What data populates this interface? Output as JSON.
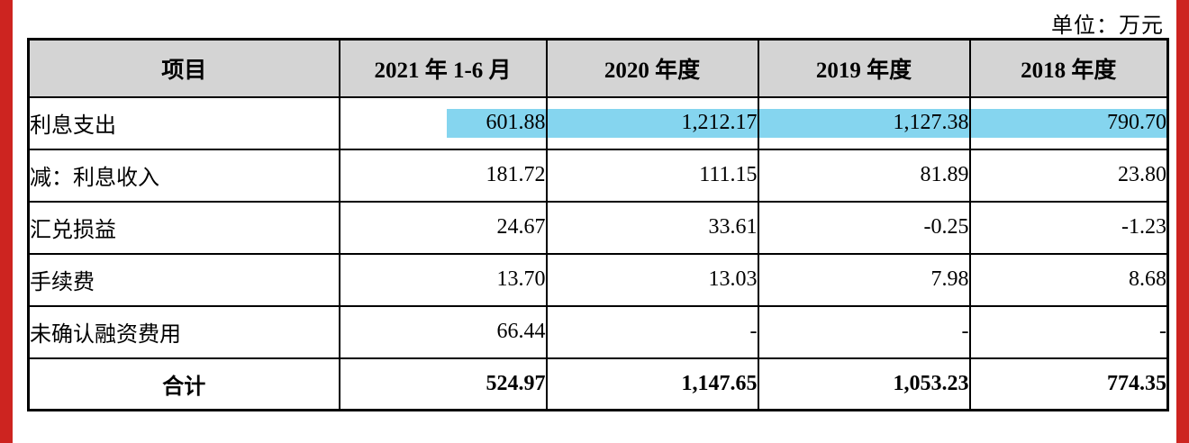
{
  "page": {
    "unit_label": "单位：万元"
  },
  "colors": {
    "edge_bar_red": "#cd2420",
    "header_background": "#d4d4d4",
    "highlight_blue": "#85d5ef",
    "border_black": "#000000"
  },
  "table": {
    "headers": [
      "项目",
      "2021 年 1-6 月",
      "2020 年度",
      "2019 年度",
      "2018 年度"
    ],
    "rows": [
      {
        "label": "利息支出",
        "values": [
          "601.88",
          "1,212.17",
          "1,127.38",
          "790.70"
        ],
        "highlighted": true
      },
      {
        "label": "减：利息收入",
        "values": [
          "181.72",
          "111.15",
          "81.89",
          "23.80"
        ],
        "highlighted": false
      },
      {
        "label": "汇兑损益",
        "values": [
          "24.67",
          "33.61",
          "-0.25",
          "-1.23"
        ],
        "highlighted": false
      },
      {
        "label": "手续费",
        "values": [
          "13.70",
          "13.03",
          "7.98",
          "8.68"
        ],
        "highlighted": false
      },
      {
        "label": "未确认融资费用",
        "values": [
          "66.44",
          "-",
          "-",
          "-"
        ],
        "highlighted": false
      },
      {
        "label": "合计",
        "values": [
          "524.97",
          "1,147.65",
          "1,053.23",
          "774.35"
        ],
        "highlighted": false,
        "total": true
      }
    ]
  }
}
